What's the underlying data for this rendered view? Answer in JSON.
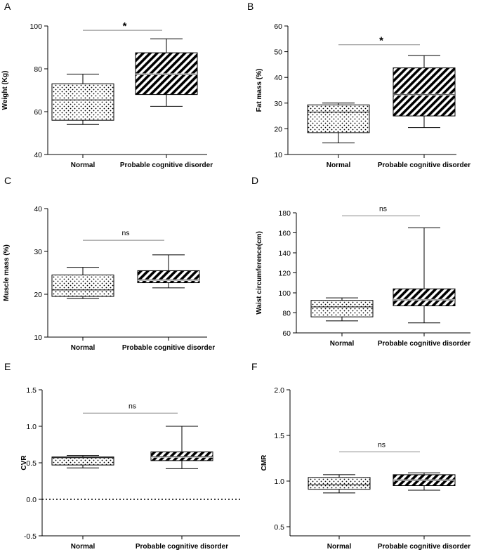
{
  "chart_data": [
    {
      "panel": "A",
      "type": "box",
      "ylabel": "Weight (Kg)",
      "ylim": [
        40,
        100
      ],
      "yticks": [
        40,
        60,
        80,
        100
      ],
      "categories": [
        "Normal",
        "Probable cognitive disorder"
      ],
      "boxes": [
        {
          "name": "Normal",
          "min": 54,
          "q1": 56,
          "median": 65.5,
          "q3": 73,
          "max": 77.5,
          "pattern": "dots"
        },
        {
          "name": "Probable cognitive disorder",
          "min": 62.5,
          "q1": 68,
          "median": 77.5,
          "q3": 87.5,
          "max": 94,
          "pattern": "hatch"
        }
      ],
      "annotation": {
        "text": "*",
        "y": 98
      },
      "zero_line": null
    },
    {
      "panel": "B",
      "type": "box",
      "ylabel": "Fat mass (%)",
      "ylim": [
        10,
        60
      ],
      "yticks": [
        10,
        20,
        30,
        40,
        50,
        60
      ],
      "categories": [
        "Normal",
        "Probable cognitive disorder"
      ],
      "boxes": [
        {
          "name": "Normal",
          "min": 14.5,
          "q1": 18.5,
          "median": 26.5,
          "q3": 29.3,
          "max": 30,
          "pattern": "dots"
        },
        {
          "name": "Probable cognitive disorder",
          "min": 20.5,
          "q1": 25,
          "median": 33.3,
          "q3": 43.7,
          "max": 48.5,
          "pattern": "hatch"
        }
      ],
      "annotation": {
        "text": "*",
        "y": 52.7
      },
      "zero_line": null
    },
    {
      "panel": "C",
      "type": "box",
      "ylabel": "Muscle mass (%)",
      "ylim": [
        10,
        40
      ],
      "yticks": [
        10,
        20,
        30,
        40
      ],
      "categories": [
        "Normal",
        "Probable cognitive disorder"
      ],
      "boxes": [
        {
          "name": "Normal",
          "min": 19,
          "q1": 19.5,
          "median": 21,
          "q3": 24.5,
          "max": 26.3,
          "pattern": "dots"
        },
        {
          "name": "Probable cognitive disorder",
          "min": 21.5,
          "q1": 22.7,
          "median": 23.3,
          "q3": 25.5,
          "max": 29.2,
          "pattern": "hatch"
        }
      ],
      "annotation": {
        "text": "ns",
        "y": 32.6
      },
      "zero_line": null
    },
    {
      "panel": "D",
      "type": "box",
      "ylabel": "Waist circumference(cm)",
      "ylim": [
        60,
        180
      ],
      "yticks": [
        60,
        80,
        100,
        120,
        140,
        160,
        180
      ],
      "categories": [
        "Normal",
        "Probable cognitive disorder"
      ],
      "boxes": [
        {
          "name": "Normal",
          "min": 72,
          "q1": 76,
          "median": 86,
          "q3": 92.5,
          "max": 95,
          "pattern": "dots"
        },
        {
          "name": "Probable cognitive disorder",
          "min": 70,
          "q1": 87,
          "median": 93,
          "q3": 104,
          "max": 165,
          "pattern": "hatch"
        }
      ],
      "annotation": {
        "text": "ns",
        "y": 177
      },
      "zero_line": null
    },
    {
      "panel": "E",
      "type": "box",
      "ylabel": "CVR",
      "ylim": [
        -0.5,
        1.5
      ],
      "yticks": [
        -0.5,
        0.0,
        0.5,
        1.0,
        1.5
      ],
      "ytick_labels": [
        "-0.5",
        "0.0",
        "0.5",
        "1.0",
        "1.5"
      ],
      "categories": [
        "Normal",
        "Probable cognitive disorder"
      ],
      "boxes": [
        {
          "name": "Normal",
          "min": 0.43,
          "q1": 0.47,
          "median": 0.57,
          "q3": 0.58,
          "max": 0.6,
          "pattern": "dots"
        },
        {
          "name": "Probable cognitive disorder",
          "min": 0.42,
          "q1": 0.53,
          "median": 0.58,
          "q3": 0.65,
          "max": 1.0,
          "pattern": "hatch"
        }
      ],
      "annotation": {
        "text": "ns",
        "y": 1.18
      },
      "zero_line": 0
    },
    {
      "panel": "F",
      "type": "box",
      "ylabel": "CMR",
      "ylim": [
        0.4,
        2.0
      ],
      "yticks": [
        0.5,
        1.0,
        1.5,
        2.0
      ],
      "ytick_labels": [
        "0.5",
        "1.0",
        "1.5",
        "2.0"
      ],
      "categories": [
        "Normal",
        "Probable cognitive disorder"
      ],
      "boxes": [
        {
          "name": "Normal",
          "min": 0.87,
          "q1": 0.91,
          "median": 0.96,
          "q3": 1.04,
          "max": 1.07,
          "pattern": "dots"
        },
        {
          "name": "Probable cognitive disorder",
          "min": 0.9,
          "q1": 0.95,
          "median": 1.01,
          "q3": 1.07,
          "max": 1.09,
          "pattern": "hatch"
        }
      ],
      "annotation": {
        "text": "ns",
        "y": 1.32
      },
      "zero_line": null
    }
  ]
}
